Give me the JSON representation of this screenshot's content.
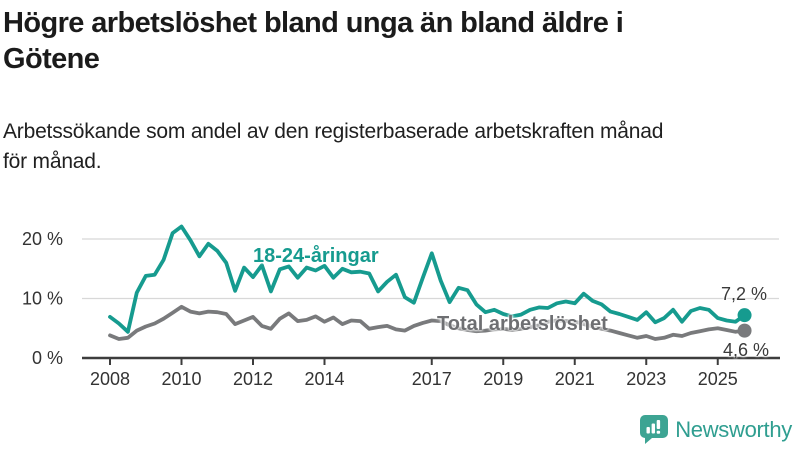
{
  "header": {
    "title_lines": [
      "Högre arbetslöshet bland unga än bland äldre i",
      "Götene"
    ],
    "subtitle_lines": [
      "Arbetssökande som andel av den registerbaserade arbetskraften månad",
      "för månad."
    ]
  },
  "colors": {
    "title": "#1b1b1b",
    "subtitle": "#202020",
    "youth": "#169B8F",
    "total": "#797A7C",
    "total_label": "#6E6F72",
    "grid": "#d8d8d8",
    "axis": "#3d3d3d",
    "tick_text": "#333333",
    "logo_icon": "#3DA493",
    "logo_text": "#2F9E90",
    "background": "#ffffff"
  },
  "chart_data": {
    "type": "line",
    "unit": "%",
    "grid": "horizontal",
    "x_start": 2008.0,
    "x_step": 0.25,
    "x_range": [
      2008,
      2025.9
    ],
    "ylim": [
      0,
      24
    ],
    "y_ticks": [
      {
        "value": 0,
        "label": "0 %"
      },
      {
        "value": 10,
        "label": "10 %"
      },
      {
        "value": 20,
        "label": "20 %"
      }
    ],
    "x_ticks": [
      {
        "year": 2008,
        "label": "2008"
      },
      {
        "year": 2010,
        "label": "2010"
      },
      {
        "year": 2012,
        "label": "2012"
      },
      {
        "year": 2014,
        "label": "2014"
      },
      {
        "year": 2017,
        "label": "2017"
      },
      {
        "year": 2019,
        "label": "2019"
      },
      {
        "year": 2021,
        "label": "2021"
      },
      {
        "year": 2023,
        "label": "2023"
      },
      {
        "year": 2025,
        "label": "2025"
      }
    ],
    "series": [
      {
        "name": "18-24-åringar",
        "color": "#169B8F",
        "end_label": "7,2 %",
        "end_value": 7.2,
        "values": [
          6.9,
          5.8,
          4.4,
          11.0,
          13.8,
          14.0,
          16.5,
          21.0,
          22.1,
          19.8,
          17.1,
          19.2,
          18.0,
          16.0,
          11.3,
          15.2,
          13.6,
          15.6,
          11.2,
          14.9,
          15.4,
          13.5,
          15.2,
          14.7,
          15.5,
          13.5,
          15.0,
          14.4,
          14.5,
          14.2,
          11.2,
          12.8,
          14.0,
          10.2,
          9.3,
          13.5,
          17.6,
          13.0,
          9.4,
          11.8,
          11.4,
          9.0,
          7.7,
          8.1,
          7.4,
          7.0,
          7.3,
          8.1,
          8.5,
          8.4,
          9.2,
          9.5,
          9.2,
          10.8,
          9.6,
          9.0,
          7.8,
          7.4,
          6.9,
          6.4,
          7.7,
          6.0,
          6.7,
          8.1,
          6.1,
          7.9,
          8.4,
          8.1,
          6.7,
          6.3,
          6.1,
          7.2
        ]
      },
      {
        "name": "Total arbetslöshet",
        "color": "#797A7C",
        "end_label": "4,6 %",
        "end_value": 4.6,
        "values": [
          3.8,
          3.2,
          3.4,
          4.6,
          5.3,
          5.8,
          6.6,
          7.6,
          8.6,
          7.8,
          7.5,
          7.8,
          7.7,
          7.4,
          5.7,
          6.3,
          6.9,
          5.4,
          4.9,
          6.6,
          7.5,
          6.2,
          6.4,
          7.0,
          6.1,
          6.8,
          5.7,
          6.3,
          6.2,
          4.9,
          5.2,
          5.4,
          4.8,
          4.6,
          5.4,
          5.9,
          6.3,
          6.2,
          5.5,
          5.0,
          4.7,
          4.5,
          4.6,
          4.8,
          4.9,
          4.7,
          4.9,
          5.2,
          5.5,
          6.1,
          6.3,
          6.2,
          6.1,
          5.7,
          5.3,
          4.9,
          4.6,
          4.2,
          3.8,
          3.4,
          3.7,
          3.2,
          3.4,
          3.9,
          3.7,
          4.2,
          4.5,
          4.8,
          5.0,
          4.7,
          4.4,
          4.6
        ]
      }
    ]
  },
  "footer": {
    "brand": "Newsworthy"
  }
}
